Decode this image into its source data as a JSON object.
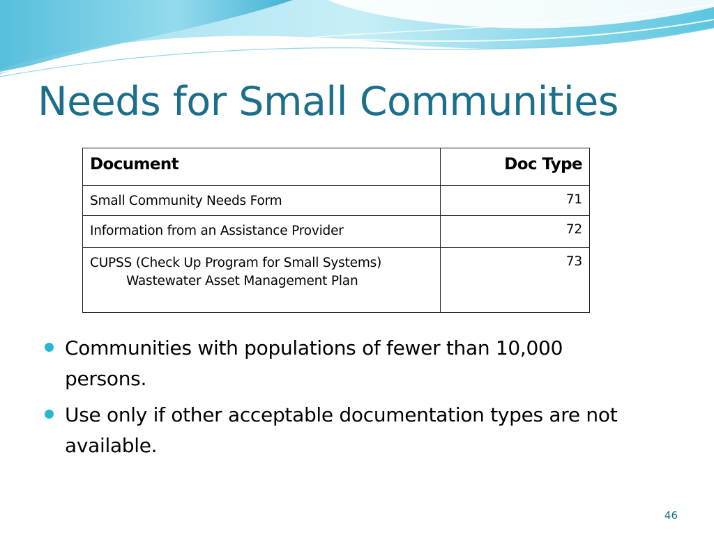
{
  "slide": {
    "title": "Needs for Small Communities",
    "page_number": "46"
  },
  "table": {
    "headers": [
      "Document",
      "Doc Type"
    ],
    "rows": [
      {
        "document": [
          "Small Community Needs Form"
        ],
        "doc_type": "71"
      },
      {
        "document": [
          "Information from an Assistance Provider"
        ],
        "doc_type": "72"
      },
      {
        "document": [
          "CUPSS (Check Up Program for Small Systems)",
          "Wastewater Asset Management Plan"
        ],
        "doc_type": "73"
      }
    ]
  },
  "bullets": [
    "Communities with populations of fewer than 10,000 persons.",
    "Use only if other acceptable documentation types are not available."
  ],
  "theme": {
    "title_color": "#1b6f8a",
    "bullet_color": "#28b6d6",
    "wave_light": "#bfe8f3",
    "wave_mid": "#7fd3e8",
    "wave_deep": "#3fb4d4"
  }
}
